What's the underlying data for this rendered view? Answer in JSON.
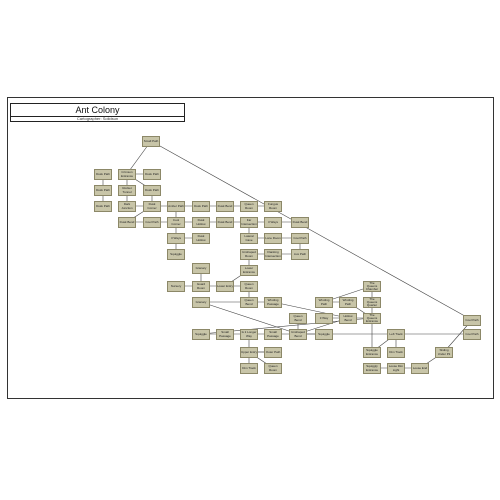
{
  "header": {
    "title": "Ant Colony",
    "subtitle": "Cartographer: Solidsun"
  },
  "colors": {
    "node_fill": "#c8c5a8",
    "node_border": "#8c8868",
    "link": "#444444"
  },
  "nodes": [
    {
      "id": "n1",
      "label": "Cool Path"
    },
    {
      "id": "n2",
      "label": "Small Path"
    },
    {
      "id": "n3",
      "label": "Crimson Entrance"
    },
    {
      "id": "n4",
      "label": "Dusk Path"
    },
    {
      "id": "n5",
      "label": "Dusk Path"
    },
    {
      "id": "n6",
      "label": "Rocket Tunnel"
    },
    {
      "id": "n7",
      "label": "Dusk Path"
    },
    {
      "id": "n8",
      "label": "Dusk Path"
    },
    {
      "id": "n9",
      "label": "Dusk Path"
    },
    {
      "id": "n10",
      "label": "Dark Junction"
    },
    {
      "id": "n11",
      "label": "Dusk Corner"
    },
    {
      "id": "n12",
      "label": "Amber Path"
    },
    {
      "id": "n13",
      "label": "Dusk Path"
    },
    {
      "id": "n14",
      "label": "Dusk Bend"
    },
    {
      "id": "n15",
      "label": "Queen Room"
    },
    {
      "id": "n16",
      "label": "Fungus Room"
    },
    {
      "id": "n17",
      "label": "Dusk Bend"
    },
    {
      "id": "n18",
      "label": "Cool Path"
    },
    {
      "id": "n19",
      "label": "Cool Corner"
    },
    {
      "id": "n20",
      "label": "Dusk Hollow"
    },
    {
      "id": "n21",
      "label": "Dusk Hollow"
    },
    {
      "id": "n22",
      "label": "Dusk Bend"
    },
    {
      "id": "n23",
      "label": "Far Intersection"
    },
    {
      "id": "n24",
      "label": "3 Ways"
    },
    {
      "id": "n25",
      "label": "Dusk Bend"
    },
    {
      "id": "n26",
      "label": "3 Ways"
    },
    {
      "id": "n27",
      "label": "Dusk Hollow"
    },
    {
      "id": "n28",
      "label": "Lateral Cave"
    },
    {
      "id": "n29",
      "label": "Lone Room"
    },
    {
      "id": "n30",
      "label": "Cool Path"
    },
    {
      "id": "n31",
      "label": "Squiggle"
    },
    {
      "id": "n32",
      "label": "Unshaped Room"
    },
    {
      "id": "n33",
      "label": "Flanking Intersection"
    },
    {
      "id": "n34",
      "label": "Aux Path"
    },
    {
      "id": "n35",
      "label": "Granary"
    },
    {
      "id": "n36",
      "label": "Lower Entrance"
    },
    {
      "id": "n37",
      "label": "Nursery"
    },
    {
      "id": "n38",
      "label": "Guard Room"
    },
    {
      "id": "n39",
      "label": "Lower Entry"
    },
    {
      "id": "n40",
      "label": "Queen Room"
    },
    {
      "id": "n41",
      "label": "Granary"
    },
    {
      "id": "n42",
      "label": "Queen Bend"
    },
    {
      "id": "n43",
      "label": "Winding Passage"
    },
    {
      "id": "n44",
      "label": "Winding Path"
    },
    {
      "id": "n45",
      "label": "The Queens Chamber"
    },
    {
      "id": "n46",
      "label": "The Queens Quarter"
    },
    {
      "id": "n47",
      "label": "Queen Bend"
    },
    {
      "id": "n48",
      "label": "Guard Room"
    },
    {
      "id": "n49",
      "label": "Hollow Bend"
    },
    {
      "id": "n50",
      "label": "3 Way"
    },
    {
      "id": "n51",
      "label": "Winding Path"
    },
    {
      "id": "n52",
      "label": "The Queens Entrance"
    },
    {
      "id": "n53",
      "label": "Cool Path"
    },
    {
      "id": "n54",
      "label": "Squiggle"
    },
    {
      "id": "n55",
      "label": "Small Passage"
    },
    {
      "id": "n56",
      "label": "Is it Longer Way"
    },
    {
      "id": "n57",
      "label": "Small Passage"
    },
    {
      "id": "n58",
      "label": "Unshaped Bend"
    },
    {
      "id": "n59",
      "label": "Squiggle"
    },
    {
      "id": "n60",
      "label": "Bright Light"
    },
    {
      "id": "n61",
      "label": "Squiggle Entrance"
    },
    {
      "id": "n62",
      "label": "Outer Path"
    },
    {
      "id": "n63",
      "label": "Upper Entry"
    },
    {
      "id": "n64",
      "label": "Dim Track"
    },
    {
      "id": "n65",
      "label": "Queen Room"
    },
    {
      "id": "n66",
      "label": "Squiggle Entrance"
    },
    {
      "id": "n67",
      "label": "Left Track"
    },
    {
      "id": "n68",
      "label": "Dim Track"
    },
    {
      "id": "n69",
      "label": "Squiggly Entrance"
    },
    {
      "id": "n70",
      "label": "Loose Dim Light"
    },
    {
      "id": "n71",
      "label": "Loose End"
    },
    {
      "id": "n72",
      "label": "Sliding Under Pit"
    }
  ],
  "links": [
    [
      "n1",
      "n2"
    ],
    [
      "n2",
      "n3"
    ],
    [
      "n3",
      "n4"
    ],
    [
      "n3",
      "n5"
    ],
    [
      "n3",
      "n6"
    ],
    [
      "n7",
      "n8"
    ],
    [
      "n8",
      "n9"
    ],
    [
      "n6",
      "n10"
    ],
    [
      "n5",
      "n11"
    ],
    [
      "n10",
      "n11"
    ],
    [
      "n11",
      "n12"
    ],
    [
      "n12",
      "n13"
    ],
    [
      "n13",
      "n14"
    ],
    [
      "n14",
      "n15"
    ],
    [
      "n15",
      "n16"
    ],
    [
      "n11",
      "n17"
    ],
    [
      "n17",
      "n18"
    ],
    [
      "n12",
      "n19"
    ],
    [
      "n18",
      "n19"
    ],
    [
      "n19",
      "n20"
    ],
    [
      "n20",
      "n21"
    ],
    [
      "n21",
      "n22"
    ],
    [
      "n22",
      "n23"
    ],
    [
      "n23",
      "n24"
    ],
    [
      "n24",
      "n25"
    ],
    [
      "n19",
      "n26"
    ],
    [
      "n26",
      "n27"
    ],
    [
      "n26",
      "n31"
    ],
    [
      "n23",
      "n28"
    ],
    [
      "n28",
      "n29"
    ],
    [
      "n29",
      "n30"
    ],
    [
      "n30",
      "n34"
    ],
    [
      "n32",
      "n33"
    ],
    [
      "n33",
      "n34"
    ],
    [
      "n32",
      "n36"
    ],
    [
      "n36",
      "n39"
    ],
    [
      "n38",
      "n39"
    ],
    [
      "n37",
      "n38"
    ],
    [
      "n35",
      "n38"
    ],
    [
      "n39",
      "n40"
    ],
    [
      "n40",
      "n42"
    ],
    [
      "n42",
      "n43"
    ],
    [
      "n41",
      "n42"
    ],
    [
      "n41",
      "n48"
    ],
    [
      "n43",
      "n49"
    ],
    [
      "n44",
      "n45"
    ],
    [
      "n45",
      "n46"
    ],
    [
      "n44",
      "n51"
    ],
    [
      "n46",
      "n52"
    ],
    [
      "n51",
      "n52"
    ],
    [
      "n47",
      "n48"
    ],
    [
      "n48",
      "n49"
    ],
    [
      "n49",
      "n50"
    ],
    [
      "n49",
      "n52"
    ],
    [
      "n48",
      "n53"
    ],
    [
      "n52",
      "n54"
    ],
    [
      "n54",
      "n55"
    ],
    [
      "n55",
      "n56"
    ],
    [
      "n56",
      "n57"
    ],
    [
      "n57",
      "n58"
    ],
    [
      "n58",
      "n59"
    ],
    [
      "n56",
      "n60"
    ],
    [
      "n60",
      "n61"
    ],
    [
      "n61",
      "n62"
    ],
    [
      "n62",
      "n63"
    ],
    [
      "n61",
      "n64"
    ],
    [
      "n60",
      "n65"
    ],
    [
      "n52",
      "n66"
    ],
    [
      "n66",
      "n67"
    ],
    [
      "n67",
      "n68"
    ],
    [
      "n69",
      "n70"
    ],
    [
      "n70",
      "n71"
    ],
    [
      "n71",
      "n72"
    ],
    [
      "n72",
      "n1"
    ]
  ]
}
